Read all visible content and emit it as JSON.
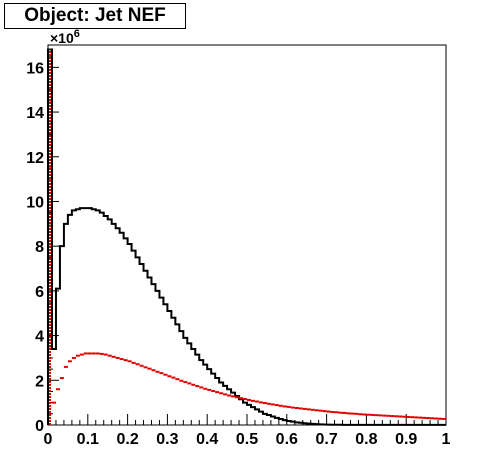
{
  "chart_data": {
    "type": "line",
    "title": "Object: Jet NEF",
    "xlabel": "",
    "ylabel": "",
    "xlim": [
      0,
      1
    ],
    "ylim": [
      0,
      17
    ],
    "y_multiplier": "×10",
    "y_multiplier_exponent": "6",
    "x_ticks": [
      0,
      0.1,
      0.2,
      0.3,
      0.4,
      0.5,
      0.6,
      0.7,
      0.8,
      0.9,
      1
    ],
    "x_tick_labels": [
      "0",
      "0.1",
      "0.2",
      "0.3",
      "0.4",
      "0.5",
      "0.6",
      "0.7",
      "0.8",
      "0.9",
      "1"
    ],
    "y_ticks": [
      0,
      2,
      4,
      6,
      8,
      10,
      12,
      14,
      16
    ],
    "y_tick_labels": [
      "0",
      "2",
      "4",
      "6",
      "8",
      "10",
      "12",
      "14",
      "16"
    ],
    "grid": false,
    "legend": "none",
    "series": [
      {
        "color": "#000000",
        "style": "histogram",
        "x": [
          0.005,
          0.015,
          0.025,
          0.035,
          0.045,
          0.055,
          0.065,
          0.075,
          0.085,
          0.095,
          0.105,
          0.115,
          0.125,
          0.135,
          0.145,
          0.155,
          0.165,
          0.175,
          0.185,
          0.195,
          0.205,
          0.215,
          0.225,
          0.235,
          0.245,
          0.255,
          0.265,
          0.275,
          0.285,
          0.295,
          0.305,
          0.315,
          0.325,
          0.335,
          0.345,
          0.355,
          0.365,
          0.375,
          0.385,
          0.395,
          0.405,
          0.415,
          0.425,
          0.435,
          0.445,
          0.455,
          0.465,
          0.475,
          0.485,
          0.495,
          0.505,
          0.515,
          0.525,
          0.535,
          0.545,
          0.555,
          0.565,
          0.575,
          0.585,
          0.595,
          0.605,
          0.615,
          0.625,
          0.635,
          0.645,
          0.655,
          0.665,
          0.675,
          0.685,
          0.695,
          0.705,
          0.715,
          0.725,
          0.735,
          0.745,
          0.755,
          0.765,
          0.775,
          0.785,
          0.795,
          0.805,
          0.815,
          0.825,
          0.835,
          0.845,
          0.855,
          0.865,
          0.875,
          0.885,
          0.895,
          0.905,
          0.915,
          0.925,
          0.935,
          0.945,
          0.955,
          0.965,
          0.975,
          0.985,
          0.995
        ],
        "y": [
          16.8,
          3.4,
          6.1,
          8.0,
          9.0,
          9.4,
          9.6,
          9.65,
          9.7,
          9.7,
          9.7,
          9.65,
          9.6,
          9.5,
          9.35,
          9.2,
          9.0,
          8.8,
          8.6,
          8.35,
          8.1,
          7.8,
          7.5,
          7.2,
          6.9,
          6.6,
          6.3,
          6.0,
          5.7,
          5.4,
          5.1,
          4.8,
          4.5,
          4.2,
          3.9,
          3.65,
          3.4,
          3.15,
          2.9,
          2.7,
          2.5,
          2.3,
          2.1,
          1.9,
          1.75,
          1.6,
          1.45,
          1.3,
          1.15,
          1.0,
          0.9,
          0.8,
          0.7,
          0.6,
          0.5,
          0.45,
          0.38,
          0.32,
          0.27,
          0.22,
          0.18,
          0.15,
          0.12,
          0.1,
          0.08,
          0.06,
          0.05,
          0.04,
          0.03,
          0.02,
          0.015,
          0.01,
          0.01,
          0.01,
          0.005,
          0.005,
          0.005,
          0.005,
          0.005,
          0.005,
          0.005,
          0.005,
          0.005,
          0.005,
          0.005,
          0.005,
          0.005,
          0.005,
          0.005,
          0.005,
          0.005,
          0.005,
          0.005,
          0.005,
          0.005,
          0.005,
          0.005,
          0.005,
          0.005,
          0.005
        ]
      },
      {
        "color": "#e00000",
        "style": "markers",
        "x": [
          0.005,
          0.015,
          0.025,
          0.035,
          0.045,
          0.055,
          0.065,
          0.075,
          0.085,
          0.095,
          0.105,
          0.115,
          0.125,
          0.135,
          0.145,
          0.155,
          0.165,
          0.175,
          0.185,
          0.195,
          0.205,
          0.215,
          0.225,
          0.235,
          0.245,
          0.255,
          0.265,
          0.275,
          0.285,
          0.295,
          0.305,
          0.315,
          0.325,
          0.335,
          0.345,
          0.355,
          0.365,
          0.375,
          0.385,
          0.395,
          0.405,
          0.415,
          0.425,
          0.435,
          0.445,
          0.455,
          0.465,
          0.475,
          0.485,
          0.495,
          0.505,
          0.515,
          0.525,
          0.535,
          0.545,
          0.555,
          0.565,
          0.575,
          0.585,
          0.595,
          0.605,
          0.615,
          0.625,
          0.635,
          0.645,
          0.655,
          0.665,
          0.675,
          0.685,
          0.695,
          0.705,
          0.715,
          0.725,
          0.735,
          0.745,
          0.755,
          0.765,
          0.775,
          0.785,
          0.795,
          0.805,
          0.815,
          0.825,
          0.835,
          0.845,
          0.855,
          0.865,
          0.875,
          0.885,
          0.895,
          0.905,
          0.915,
          0.925,
          0.935,
          0.945,
          0.955,
          0.965,
          0.975,
          0.985,
          0.995
        ],
        "y": [
          16.8,
          1.0,
          1.6,
          2.1,
          2.6,
          2.85,
          3.0,
          3.1,
          3.15,
          3.2,
          3.2,
          3.2,
          3.2,
          3.18,
          3.15,
          3.1,
          3.05,
          3.0,
          2.95,
          2.9,
          2.85,
          2.78,
          2.72,
          2.65,
          2.58,
          2.52,
          2.45,
          2.38,
          2.32,
          2.25,
          2.18,
          2.12,
          2.05,
          1.98,
          1.92,
          1.86,
          1.8,
          1.74,
          1.68,
          1.62,
          1.57,
          1.52,
          1.47,
          1.42,
          1.37,
          1.32,
          1.28,
          1.24,
          1.2,
          1.16,
          1.12,
          1.08,
          1.05,
          1.01,
          0.98,
          0.95,
          0.92,
          0.89,
          0.86,
          0.83,
          0.81,
          0.78,
          0.76,
          0.74,
          0.72,
          0.7,
          0.68,
          0.66,
          0.64,
          0.62,
          0.6,
          0.58,
          0.57,
          0.55,
          0.54,
          0.52,
          0.51,
          0.5,
          0.48,
          0.47,
          0.46,
          0.45,
          0.44,
          0.43,
          0.42,
          0.41,
          0.4,
          0.39,
          0.38,
          0.37,
          0.36,
          0.35,
          0.34,
          0.33,
          0.32,
          0.31,
          0.3,
          0.29,
          0.28,
          0.27
        ]
      }
    ]
  }
}
